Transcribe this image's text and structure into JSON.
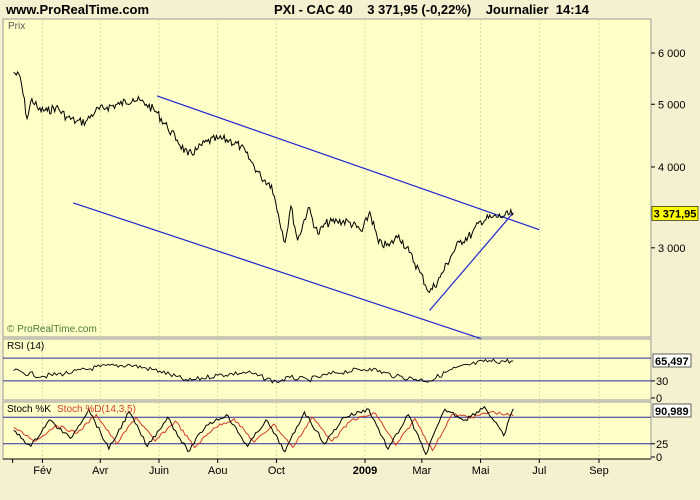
{
  "header": {
    "site": "www.ProRealTime.com",
    "quote": "PXI - CAC 40    3 371,95 (-0,22%)    Journalier  14:14"
  },
  "chart_data": [
    {
      "type": "line",
      "panel_label": "Prix",
      "watermark": "© ProRealTime.com",
      "last_value_label": "3 371,95",
      "ylim": [
        2200,
        6700
      ],
      "yscale": "log",
      "yticks": [
        3000,
        4000,
        5000,
        6000
      ],
      "ytick_labels": [
        "3 000",
        "4 000",
        "5 000",
        "6 000"
      ],
      "series": [
        {
          "x": [
            "2008-01-02",
            "2008-01-09",
            "2008-01-16",
            "2008-01-21",
            "2008-01-28",
            "2008-02-06",
            "2008-02-15",
            "2008-02-26",
            "2008-03-07",
            "2008-03-17",
            "2008-03-27",
            "2008-04-08",
            "2008-04-21",
            "2008-05-05",
            "2008-05-19",
            "2008-05-29",
            "2008-06-10",
            "2008-06-20",
            "2008-07-01",
            "2008-07-10",
            "2008-07-21",
            "2008-08-01",
            "2008-08-13",
            "2008-08-25",
            "2008-09-05",
            "2008-09-15",
            "2008-09-26",
            "2008-10-03",
            "2008-10-10",
            "2008-10-16",
            "2008-10-23",
            "2008-11-03",
            "2008-11-13",
            "2008-11-21",
            "2008-12-03",
            "2008-12-15",
            "2008-12-29",
            "2009-01-06",
            "2009-01-15",
            "2009-01-26",
            "2009-02-05",
            "2009-02-16",
            "2009-02-27",
            "2009-03-09",
            "2009-03-20",
            "2009-03-31",
            "2009-04-09",
            "2009-04-22",
            "2009-05-01",
            "2009-05-12",
            "2009-05-26",
            "2009-06-04"
          ],
          "values": [
            5600,
            5500,
            4750,
            5100,
            4900,
            4880,
            4950,
            4780,
            4700,
            4700,
            4880,
            4950,
            5000,
            5100,
            5000,
            4870,
            4600,
            4400,
            4170,
            4250,
            4380,
            4420,
            4400,
            4300,
            4070,
            3860,
            3750,
            3380,
            3060,
            3480,
            3080,
            3460,
            3150,
            3270,
            3300,
            3290,
            3180,
            3410,
            3050,
            3020,
            3140,
            2950,
            2750,
            2560,
            2700,
            2910,
            3060,
            3150,
            3300,
            3340,
            3360,
            3390
          ]
        }
      ],
      "channel_lines": [
        {
          "label": "upper",
          "from": [
            "2008-05-30",
            5150
          ],
          "to": [
            "2009-07-01",
            3200
          ]
        },
        {
          "label": "lower",
          "from": [
            "2008-03-04",
            3520
          ],
          "to": [
            "2009-06-08",
            2080
          ]
        },
        {
          "label": "support",
          "from": [
            "2009-03-09",
            2400
          ],
          "to": [
            "2009-06-04",
            3400
          ]
        }
      ],
      "xaxis": {
        "ticks": [
          "2008-01-01",
          "2008-02-01",
          "2008-04-01",
          "2008-06-01",
          "2008-08-01",
          "2008-10-01",
          "2009-01-01",
          "2009-03-01",
          "2009-05-01",
          "2009-07-01",
          "2009-09-01"
        ],
        "labels": [
          "",
          "Fév",
          "Avr",
          "Juin",
          "Aou",
          "Oct",
          "2009",
          "Mar",
          "Mai",
          "Jul",
          "Sep"
        ],
        "range": [
          "2007-12-22",
          "2009-10-25"
        ]
      }
    },
    {
      "type": "line",
      "title": "RSI (14)",
      "last_value_label": "65,497",
      "ylim": [
        0,
        100
      ],
      "levels": [
        70,
        30
      ],
      "yticks": [
        30,
        0
      ],
      "ytick_labels": [
        "30",
        "0"
      ],
      "series": [
        {
          "x": [
            "2008-01-02",
            "2008-02-01",
            "2008-03-03",
            "2008-04-01",
            "2008-05-02",
            "2008-06-02",
            "2008-07-01",
            "2008-08-01",
            "2008-09-01",
            "2008-10-01",
            "2008-10-15",
            "2008-11-03",
            "2008-12-01",
            "2009-01-06",
            "2009-02-02",
            "2009-03-09",
            "2009-04-01",
            "2009-05-04",
            "2009-06-04"
          ],
          "values": [
            48,
            38,
            45,
            55,
            58,
            47,
            30,
            40,
            45,
            28,
            36,
            32,
            44,
            52,
            38,
            30,
            50,
            64,
            65
          ]
        }
      ]
    },
    {
      "type": "line",
      "title_k": "Stoch %K",
      "title_d": "Stoch %D(14,3,5)",
      "last_value_label": "90,989",
      "ylim": [
        0,
        100
      ],
      "levels": [
        75,
        25
      ],
      "yticks": [
        25,
        0
      ],
      "ytick_labels": [
        "25",
        "0"
      ],
      "series": [
        {
          "name": "Stoch %K",
          "x": [
            "2008-01-02",
            "2008-01-20",
            "2008-02-08",
            "2008-03-01",
            "2008-03-20",
            "2008-04-10",
            "2008-05-01",
            "2008-05-20",
            "2008-06-10",
            "2008-07-01",
            "2008-07-20",
            "2008-08-10",
            "2008-09-01",
            "2008-09-20",
            "2008-10-10",
            "2008-10-30",
            "2008-11-20",
            "2008-12-10",
            "2009-01-05",
            "2009-01-25",
            "2009-02-15",
            "2009-03-05",
            "2009-03-25",
            "2009-04-15",
            "2009-05-05",
            "2009-05-25",
            "2009-06-04"
          ],
          "values": [
            50,
            20,
            70,
            35,
            90,
            15,
            85,
            20,
            75,
            10,
            60,
            80,
            20,
            70,
            10,
            85,
            25,
            75,
            90,
            15,
            80,
            5,
            90,
            70,
            95,
            40,
            91
          ]
        },
        {
          "name": "Stoch %D(14,3,5)",
          "x": [
            "2008-01-02",
            "2008-01-25",
            "2008-02-15",
            "2008-03-08",
            "2008-03-28",
            "2008-04-18",
            "2008-05-08",
            "2008-05-28",
            "2008-06-18",
            "2008-07-08",
            "2008-07-28",
            "2008-08-18",
            "2008-09-08",
            "2008-09-28",
            "2008-10-18",
            "2008-11-07",
            "2008-11-28",
            "2008-12-18",
            "2009-01-12",
            "2009-02-02",
            "2009-02-22",
            "2009-03-12",
            "2009-04-01",
            "2009-04-22",
            "2009-05-12",
            "2009-06-04"
          ],
          "values": [
            55,
            30,
            60,
            45,
            80,
            25,
            75,
            30,
            68,
            18,
            55,
            72,
            28,
            62,
            18,
            75,
            30,
            70,
            82,
            22,
            72,
            12,
            80,
            75,
            85,
            78
          ]
        }
      ]
    }
  ],
  "colors": {
    "background": "#f4f0d0",
    "plot": "#ffffc8",
    "price_line": "#000000",
    "channel": "#1f24cf",
    "rsi_line": "#000000",
    "stoch_k": "#000000",
    "stoch_d": "#d03c2a",
    "level_lines": "#2c2ca0",
    "price_label_bg": "#ffff00"
  }
}
